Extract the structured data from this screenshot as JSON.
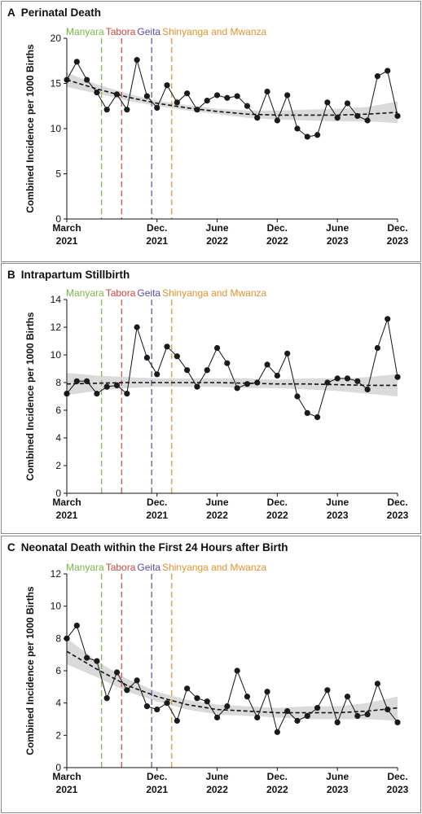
{
  "chart_data": [
    {
      "type": "line",
      "panel_label": "A",
      "title": "Perinatal Death",
      "ylabel": "Combined Incidence per 1000 Births",
      "ylim": [
        0,
        20
      ],
      "yticks": [
        0,
        5,
        10,
        15,
        20
      ],
      "x_range": [
        "2021-03",
        "2023-12"
      ],
      "xticks": [
        {
          "x": "2021-03",
          "line1": "March",
          "line2": "2021"
        },
        {
          "x": "2021-12",
          "line1": "Dec.",
          "line2": "2021"
        },
        {
          "x": "2022-06",
          "line1": "June",
          "line2": "2022"
        },
        {
          "x": "2022-12",
          "line1": "Dec.",
          "line2": "2022"
        },
        {
          "x": "2023-06",
          "line1": "June",
          "line2": "2023"
        },
        {
          "x": "2023-12",
          "line1": "Dec.",
          "line2": "2023"
        }
      ],
      "rollouts": [
        {
          "label": "Manyara",
          "x": "2021-06-15",
          "color": "#7ab648"
        },
        {
          "label": "Tabora",
          "x": "2021-08-15",
          "color": "#c8453f"
        },
        {
          "label": "Geita",
          "x": "2021-11-15",
          "color": "#5b4a9a"
        },
        {
          "label": "Shinyanga and Mwanza",
          "x": "2022-01-15",
          "color": "#e0922d"
        }
      ],
      "series": [
        {
          "x": [
            "2021-03",
            "2021-04",
            "2021-05",
            "2021-06",
            "2021-07",
            "2021-08",
            "2021-09",
            "2021-10",
            "2021-11",
            "2021-12",
            "2022-01",
            "2022-02",
            "2022-03",
            "2022-04",
            "2022-05",
            "2022-06",
            "2022-07",
            "2022-08",
            "2022-09",
            "2022-10",
            "2022-11",
            "2022-12",
            "2023-01",
            "2023-02",
            "2023-03",
            "2023-04",
            "2023-05",
            "2023-06",
            "2023-07",
            "2023-08",
            "2023-09",
            "2023-10",
            "2023-11",
            "2023-12"
          ],
          "y": [
            15.4,
            17.4,
            15.4,
            14.0,
            12.1,
            13.8,
            12.1,
            17.6,
            13.6,
            12.3,
            14.8,
            12.9,
            13.9,
            12.1,
            13.1,
            13.7,
            13.4,
            13.6,
            12.5,
            11.2,
            14.1,
            10.9,
            13.7,
            10.0,
            9.1,
            9.3,
            12.9,
            11.2,
            12.8,
            11.4,
            10.9,
            15.8,
            16.4,
            11.4
          ]
        }
      ],
      "trend": {
        "x": [
          "2021-03",
          "2021-06",
          "2021-09",
          "2021-12",
          "2022-03",
          "2022-06",
          "2022-09",
          "2022-12",
          "2023-03",
          "2023-06",
          "2023-09",
          "2023-12"
        ],
        "y": [
          15.4,
          14.4,
          13.5,
          12.8,
          12.3,
          11.9,
          11.6,
          11.5,
          11.5,
          11.5,
          11.6,
          11.8
        ],
        "ci_lower": [
          14.6,
          13.9,
          13.1,
          12.5,
          12.0,
          11.6,
          11.2,
          11.0,
          10.9,
          10.8,
          10.8,
          10.6
        ],
        "ci_upper": [
          16.2,
          14.9,
          13.9,
          13.1,
          12.6,
          12.2,
          12.0,
          12.0,
          12.1,
          12.2,
          12.4,
          13.0
        ]
      }
    },
    {
      "type": "line",
      "panel_label": "B",
      "title": "Intrapartum Stillbirth",
      "ylabel": "Combined Incidence per 1000 Births",
      "ylim": [
        0,
        14
      ],
      "yticks": [
        0,
        2,
        4,
        6,
        8,
        10,
        12,
        14
      ],
      "x_range": [
        "2021-03",
        "2023-12"
      ],
      "xticks": [
        {
          "x": "2021-03",
          "line1": "March",
          "line2": "2021"
        },
        {
          "x": "2021-12",
          "line1": "Dec.",
          "line2": "2021"
        },
        {
          "x": "2022-06",
          "line1": "June",
          "line2": "2022"
        },
        {
          "x": "2022-12",
          "line1": "Dec.",
          "line2": "2022"
        },
        {
          "x": "2023-06",
          "line1": "June",
          "line2": "2023"
        },
        {
          "x": "2023-12",
          "line1": "Dec.",
          "line2": "2023"
        }
      ],
      "rollouts": [
        {
          "label": "Manyara",
          "x": "2021-06-15",
          "color": "#7ab648"
        },
        {
          "label": "Tabora",
          "x": "2021-08-15",
          "color": "#c8453f"
        },
        {
          "label": "Geita",
          "x": "2021-11-15",
          "color": "#5b4a9a"
        },
        {
          "label": "Shinyanga and Mwanza",
          "x": "2022-01-15",
          "color": "#e0922d"
        }
      ],
      "series": [
        {
          "x": [
            "2021-03",
            "2021-04",
            "2021-05",
            "2021-06",
            "2021-07",
            "2021-08",
            "2021-09",
            "2021-10",
            "2021-11",
            "2021-12",
            "2022-01",
            "2022-02",
            "2022-03",
            "2022-04",
            "2022-05",
            "2022-06",
            "2022-07",
            "2022-08",
            "2022-09",
            "2022-10",
            "2022-11",
            "2022-12",
            "2023-01",
            "2023-02",
            "2023-03",
            "2023-04",
            "2023-05",
            "2023-06",
            "2023-07",
            "2023-08",
            "2023-09",
            "2023-10",
            "2023-11",
            "2023-12"
          ],
          "y": [
            7.2,
            8.1,
            8.1,
            7.2,
            7.7,
            7.8,
            7.2,
            12.0,
            9.8,
            8.6,
            10.6,
            9.9,
            8.9,
            7.7,
            8.9,
            10.5,
            9.4,
            7.6,
            7.9,
            8.0,
            9.3,
            8.5,
            10.1,
            7.0,
            5.8,
            5.5,
            8.0,
            8.3,
            8.3,
            8.1,
            7.5,
            10.5,
            12.6,
            8.4
          ]
        }
      ],
      "trend": {
        "x": [
          "2021-03",
          "2021-06",
          "2021-09",
          "2021-12",
          "2022-03",
          "2022-06",
          "2022-09",
          "2022-12",
          "2023-03",
          "2023-06",
          "2023-09",
          "2023-12"
        ],
        "y": [
          7.9,
          7.95,
          8.0,
          8.0,
          8.0,
          8.0,
          7.95,
          7.9,
          7.9,
          7.85,
          7.8,
          7.8
        ],
        "ci_lower": [
          7.1,
          7.4,
          7.6,
          7.7,
          7.7,
          7.7,
          7.6,
          7.6,
          7.5,
          7.4,
          7.2,
          7.0
        ],
        "ci_upper": [
          8.7,
          8.5,
          8.4,
          8.3,
          8.3,
          8.3,
          8.3,
          8.2,
          8.3,
          8.3,
          8.4,
          8.6
        ]
      }
    },
    {
      "type": "line",
      "panel_label": "C",
      "title": "Neonatal Death within the First 24 Hours after Birth",
      "ylabel": "Combined Incidence per 1000 Births",
      "ylim": [
        0,
        12
      ],
      "yticks": [
        0,
        2,
        4,
        6,
        8,
        10,
        12
      ],
      "x_range": [
        "2021-03",
        "2023-12"
      ],
      "xticks": [
        {
          "x": "2021-03",
          "line1": "March",
          "line2": "2021"
        },
        {
          "x": "2021-12",
          "line1": "Dec.",
          "line2": "2021"
        },
        {
          "x": "2022-06",
          "line1": "June",
          "line2": "2022"
        },
        {
          "x": "2022-12",
          "line1": "Dec.",
          "line2": "2022"
        },
        {
          "x": "2023-06",
          "line1": "June",
          "line2": "2023"
        },
        {
          "x": "2023-12",
          "line1": "Dec.",
          "line2": "2023"
        }
      ],
      "rollouts": [
        {
          "label": "Manyara",
          "x": "2021-06-15",
          "color": "#7ab648"
        },
        {
          "label": "Tabora",
          "x": "2021-08-15",
          "color": "#c8453f"
        },
        {
          "label": "Geita",
          "x": "2021-11-15",
          "color": "#5b4a9a"
        },
        {
          "label": "Shinyanga and Mwanza",
          "x": "2022-01-15",
          "color": "#e0922d"
        }
      ],
      "series": [
        {
          "x": [
            "2021-03",
            "2021-04",
            "2021-05",
            "2021-06",
            "2021-07",
            "2021-08",
            "2021-09",
            "2021-10",
            "2021-11",
            "2021-12",
            "2022-01",
            "2022-02",
            "2022-03",
            "2022-04",
            "2022-05",
            "2022-06",
            "2022-07",
            "2022-08",
            "2022-09",
            "2022-10",
            "2022-11",
            "2022-12",
            "2023-01",
            "2023-02",
            "2023-03",
            "2023-04",
            "2023-05",
            "2023-06",
            "2023-07",
            "2023-08",
            "2023-09",
            "2023-10",
            "2023-11",
            "2023-12"
          ],
          "y": [
            8.0,
            8.8,
            6.8,
            6.6,
            4.3,
            5.9,
            4.8,
            5.4,
            3.8,
            3.6,
            4.0,
            2.9,
            4.9,
            4.3,
            4.1,
            3.1,
            3.8,
            6.0,
            4.4,
            3.1,
            4.7,
            2.2,
            3.5,
            2.9,
            3.2,
            3.7,
            4.8,
            2.8,
            4.4,
            3.2,
            3.3,
            5.2,
            3.6,
            2.8
          ]
        }
      ],
      "trend": {
        "x": [
          "2021-03",
          "2021-06",
          "2021-09",
          "2021-12",
          "2022-03",
          "2022-06",
          "2022-09",
          "2022-12",
          "2023-03",
          "2023-06",
          "2023-09",
          "2023-12"
        ],
        "y": [
          7.2,
          6.1,
          5.1,
          4.4,
          3.9,
          3.6,
          3.5,
          3.4,
          3.4,
          3.4,
          3.5,
          3.7
        ],
        "ci_lower": [
          6.4,
          5.6,
          4.7,
          4.1,
          3.6,
          3.3,
          3.2,
          3.1,
          3.0,
          3.0,
          3.0,
          2.9
        ],
        "ci_upper": [
          8.0,
          6.6,
          5.5,
          4.7,
          4.2,
          3.9,
          3.8,
          3.7,
          3.8,
          3.8,
          4.0,
          4.4
        ]
      }
    }
  ]
}
